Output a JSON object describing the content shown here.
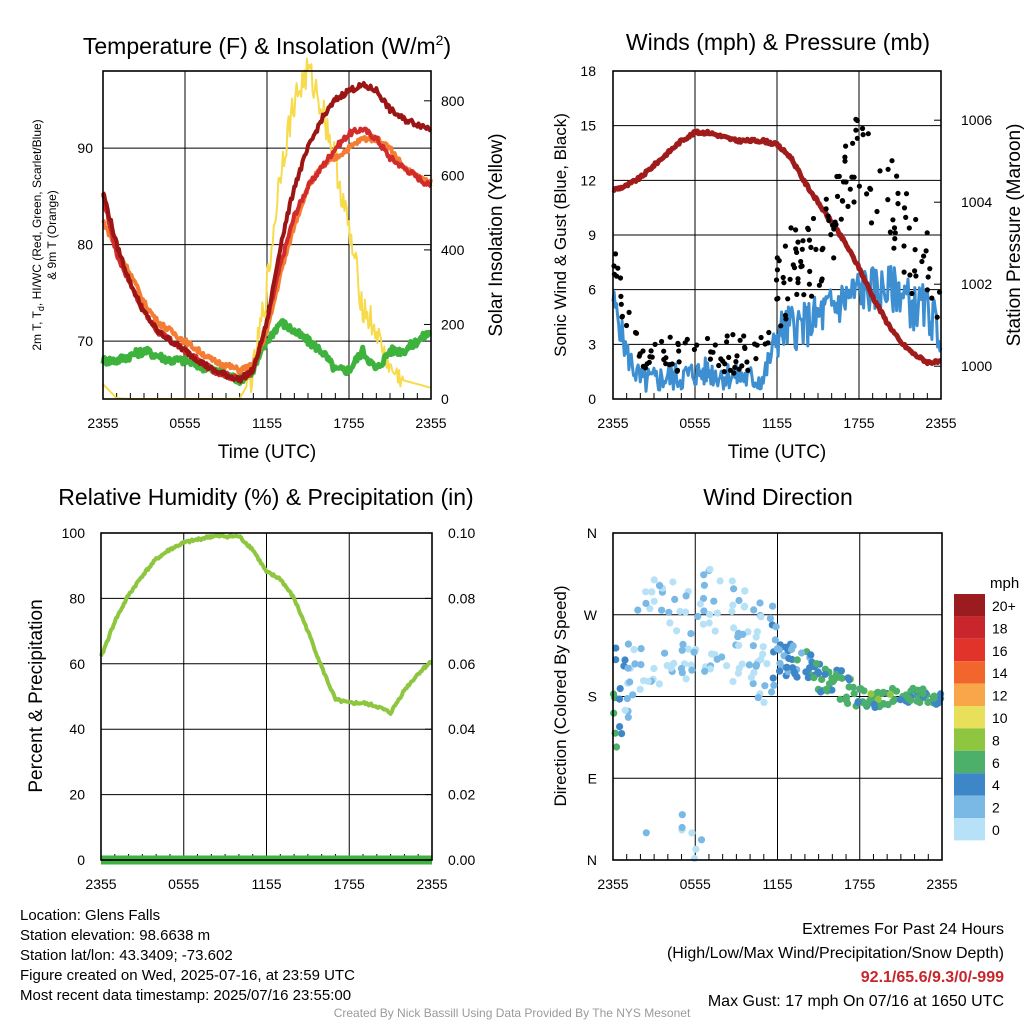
{
  "colors": {
    "t2m": "#d12b2b",
    "dewpoint": "#3db23d",
    "heat_index": "#9b1515",
    "t9m": "#f47d33",
    "insolation": "#f7db4c",
    "gust": "#000000",
    "wind": "#3d8fd1",
    "pressure": "#a01c1c",
    "humidity": "#8ec63f",
    "precip": "#3db23d",
    "grid": "#000000"
  },
  "charts": {
    "temp": {
      "title_main": "Temperature (F) & Insolation (W/m",
      "title_sup": "2",
      "title_end": ")",
      "ylabel_line1": "2m T, T",
      "ylabel_sub": "d",
      "ylabel_line1b": ", HI/WC (Red, Green, Scarlet/Blue)",
      "ylabel_line2": "& 9m T (Orange)",
      "y2label": "Solar Insolation (Yellow)",
      "xlabel": "Time (UTC)"
    },
    "wind": {
      "title": "Winds (mph) & Pressure (mb)",
      "ylabel": "Sonic Wind & Gust (Blue, Black)",
      "y2label": "Station Pressure (Maroon)",
      "xlabel": "Time (UTC)"
    },
    "rh": {
      "title": "Relative Humidity (%) & Precipitation (in)",
      "ylabel": "Percent & Precipitation"
    },
    "dir": {
      "title": "Wind Direction",
      "ylabel": "Direction (Colored By Speed)",
      "colorbar_unit": "mph"
    }
  },
  "chart_data": [
    {
      "type": "line",
      "x": [
        0,
        1,
        2,
        3,
        4,
        5,
        6,
        7,
        8,
        9,
        10,
        11,
        12,
        13,
        14,
        15,
        16,
        17,
        18,
        19,
        20,
        21,
        22,
        23,
        24
      ],
      "xticks": [
        "2355",
        "0555",
        "1155",
        "1755",
        "2355"
      ],
      "xtick_positions": [
        0,
        6,
        12,
        18,
        24
      ],
      "ylim": [
        64,
        98
      ],
      "yticks": [
        70,
        80,
        90
      ],
      "y2lim": [
        0,
        880
      ],
      "y2ticks": [
        0,
        200,
        400,
        600,
        800
      ],
      "series": [
        {
          "axis": "left",
          "values": [
            85,
            79,
            76,
            73,
            71,
            70,
            69,
            68,
            67,
            66.5,
            66,
            67,
            72,
            78,
            83,
            86,
            88,
            90,
            91.5,
            92,
            91,
            89,
            88,
            87,
            86
          ]
        },
        {
          "axis": "left",
          "values": [
            68,
            68,
            68.5,
            69,
            68.5,
            68,
            68,
            67.5,
            67,
            66.5,
            66,
            67,
            70,
            72,
            71,
            70,
            69,
            67,
            67,
            69,
            67,
            69,
            69,
            70,
            71
          ]
        },
        {
          "axis": "left",
          "values": [
            85.5,
            80,
            76,
            73,
            71,
            70,
            69,
            68,
            67,
            66.5,
            66,
            67,
            72,
            80,
            86,
            90,
            93,
            95,
            96,
            96.5,
            96,
            94,
            93,
            92.5,
            92
          ]
        },
        {
          "axis": "left",
          "values": [
            82.5,
            79.5,
            77,
            74,
            72,
            71,
            70,
            69,
            68,
            67.5,
            67,
            67.5,
            71,
            77,
            82,
            86,
            88,
            89,
            90,
            91,
            91,
            90,
            88,
            87,
            86.5
          ]
        },
        {
          "axis": "right",
          "values": [
            40,
            2,
            0,
            0,
            0,
            0,
            0,
            0,
            0,
            0,
            0,
            70,
            300,
            620,
            800,
            880,
            790,
            640,
            450,
            250,
            180,
            80,
            50,
            40,
            30
          ]
        }
      ]
    },
    {
      "type": "scatter",
      "xticks": [
        "2355",
        "0555",
        "1155",
        "1755",
        "2355"
      ],
      "xtick_positions": [
        0,
        6,
        12,
        18,
        24
      ],
      "ylim": [
        0,
        18
      ],
      "yticks": [
        0,
        3,
        6,
        9,
        12,
        15,
        18
      ],
      "y2lim": [
        999.2,
        1007.2
      ],
      "y2ticks": [
        1000,
        1002,
        1004,
        1006
      ],
      "series": [
        {
          "name": "Sonic Wind",
          "values_by_hour": [
            5.5,
            2.5,
            1,
            1,
            1.2,
            1.2,
            1.4,
            1.5,
            1.3,
            1.3,
            1.1,
            1.1,
            3.5,
            4,
            4,
            4.5,
            5,
            5.5,
            6,
            6,
            6,
            6,
            5,
            5,
            3.5
          ]
        },
        {
          "name": "Gust",
          "values_by_hour": [
            8,
            4,
            2.5,
            2,
            2.5,
            2.5,
            2.5,
            2.5,
            2.5,
            2.5,
            2.5,
            2.5,
            6,
            7,
            7,
            8,
            9,
            13,
            13,
            12,
            11,
            10,
            8,
            7,
            5
          ]
        },
        {
          "name": "Station Pressure",
          "values_by_hour": [
            1004.3,
            1004.4,
            1004.6,
            1004.9,
            1005.2,
            1005.5,
            1005.7,
            1005.7,
            1005.6,
            1005.5,
            1005.5,
            1005.5,
            1005.4,
            1005.1,
            1004.5,
            1004,
            1003.5,
            1003,
            1002.4,
            1001.7,
            1001.1,
            1000.6,
            1000.3,
            1000.1,
            1000.1
          ]
        }
      ]
    },
    {
      "type": "line",
      "x": [
        0,
        1,
        2,
        3,
        4,
        5,
        6,
        7,
        8,
        9,
        10,
        11,
        12,
        13,
        14,
        15,
        16,
        17,
        18,
        19,
        20,
        21,
        22,
        23,
        24
      ],
      "xticks": [
        "2355",
        "0555",
        "1155",
        "1755",
        "2355"
      ],
      "xtick_positions": [
        0,
        6,
        12,
        18,
        24
      ],
      "ylim": [
        0,
        100
      ],
      "yticks": [
        0,
        20,
        40,
        60,
        80,
        100
      ],
      "y2lim": [
        0,
        0.1
      ],
      "y2ticks": [
        "0.00",
        "0.02",
        "0.04",
        "0.06",
        "0.08",
        "0.10"
      ],
      "series": [
        {
          "name": "Relative Humidity",
          "values": [
            62,
            73,
            81,
            87,
            92,
            95,
            97,
            98,
            99,
            99,
            99,
            95,
            88,
            86,
            80,
            70,
            59,
            49,
            48,
            48,
            47,
            45,
            52,
            57,
            61
          ]
        },
        {
          "name": "Precipitation",
          "values": [
            0,
            0,
            0,
            0,
            0,
            0,
            0,
            0,
            0,
            0,
            0,
            0,
            0,
            0,
            0,
            0,
            0,
            0,
            0,
            0,
            0,
            0,
            0,
            0,
            0
          ]
        }
      ]
    },
    {
      "type": "scatter",
      "xticks": [
        "2355",
        "0555",
        "1155",
        "1755",
        "2355"
      ],
      "xtick_positions": [
        0,
        6,
        12,
        18,
        24
      ],
      "yticks": [
        "N",
        "W",
        "S",
        "E",
        "N"
      ],
      "ylim_degrees": [
        0,
        360
      ],
      "legend": "right",
      "colorbar": [
        "20+",
        "18",
        "16",
        "14",
        "12",
        "10",
        "8",
        "6",
        "4",
        "2",
        "0"
      ],
      "colorbar_colors": [
        "#9b1b1e",
        "#c8262c",
        "#e2332a",
        "#f2662e",
        "#f9a64b",
        "#e8df5a",
        "#8ec63f",
        "#4caf6a",
        "#3d87c8",
        "#7ab8e5",
        "#b7e1f6"
      ],
      "direction_trend_by_hour": [
        180,
        175,
        240,
        250,
        250,
        255,
        260,
        265,
        275,
        245,
        240,
        230,
        220,
        220,
        215,
        200,
        195,
        190,
        180,
        175,
        180,
        180,
        180,
        180,
        180
      ],
      "speed_trend_by_hour": [
        5,
        2,
        1,
        1,
        1,
        1,
        1,
        1,
        1,
        1,
        1,
        1,
        3,
        4,
        4,
        4.5,
        5,
        5.5,
        6,
        6,
        6,
        6,
        5,
        5,
        3.5
      ]
    }
  ],
  "info": {
    "location": "Location: Glens Falls",
    "elevation": "Station elevation: 98.6638 m",
    "latlon": "Station lat/lon: 43.3409; -73.602",
    "created": "Figure created on Wed, 2025-07-16, at 23:59 UTC",
    "recent": "Most recent data timestamp: 2025/07/16 23:55:00"
  },
  "extremes": {
    "title": "Extremes For Past 24 Hours",
    "subtitle": "(High/Low/Max Wind/Precipitation/Snow Depth)",
    "values": "92.1/65.6/9.3/0/-999",
    "gust": "Max Gust: 17 mph On 07/16 at 1650 UTC"
  },
  "credit": "Created By Nick Bassill Using Data Provided By The NYS Mesonet"
}
